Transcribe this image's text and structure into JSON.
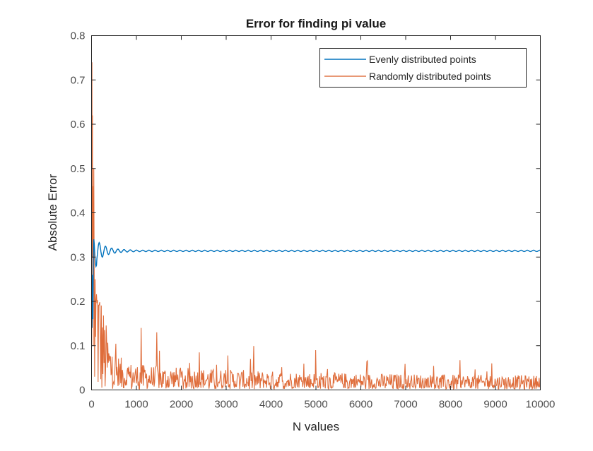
{
  "chart_data": {
    "type": "line",
    "title": "Error for finding pi value",
    "xlabel": "N values",
    "ylabel": "Absolute Error",
    "xlim": [
      0,
      10000
    ],
    "ylim": [
      0,
      0.8
    ],
    "xticks": [
      0,
      1000,
      2000,
      3000,
      4000,
      5000,
      6000,
      7000,
      8000,
      9000,
      10000
    ],
    "yticks": [
      0,
      0.1,
      0.2,
      0.3,
      0.4,
      0.5,
      0.6,
      0.7,
      0.8
    ],
    "xtick_labels": [
      "0",
      "1000",
      "2000",
      "3000",
      "4000",
      "5000",
      "6000",
      "7000",
      "8000",
      "9000",
      "10000"
    ],
    "ytick_labels": [
      "0",
      "0.1",
      "0.2",
      "0.3",
      "0.4",
      "0.5",
      "0.6",
      "0.7",
      "0.8"
    ],
    "grid": false,
    "legend_position": "northeast",
    "series": [
      {
        "name": "Evenly distributed points",
        "color": "#0072BD",
        "x": [
          10,
          20,
          50,
          80,
          100,
          150,
          200,
          300,
          500,
          1000,
          2000,
          5000,
          10000
        ],
        "values": [
          0.14,
          0.26,
          0.3,
          0.34,
          0.29,
          0.325,
          0.3,
          0.322,
          0.308,
          0.316,
          0.314,
          0.314,
          0.314
        ]
      },
      {
        "name": "Randomly distributed points",
        "color": "#D95319",
        "x": [
          10,
          20,
          40,
          60,
          100,
          150,
          200,
          300,
          500,
          1000,
          1100,
          1500,
          2000,
          3000,
          4000,
          5000,
          6000,
          7000,
          8000,
          9000,
          10000
        ],
        "values": [
          0.74,
          0.46,
          0.35,
          0.26,
          0.25,
          0.16,
          0.14,
          0.1,
          0.06,
          0.05,
          0.14,
          0.13,
          0.07,
          0.07,
          0.06,
          0.09,
          0.05,
          0.04,
          0.05,
          0.06,
          0.02
        ],
        "peak_values": {
          "max": 0.74,
          "late_peak_1100": 0.14,
          "late_peak_1450": 0.13
        }
      }
    ]
  },
  "legend": {
    "items": [
      {
        "label": "Evenly distributed points",
        "color": "#0072BD"
      },
      {
        "label": "Randomly distributed points",
        "color": "#D95319"
      }
    ]
  }
}
